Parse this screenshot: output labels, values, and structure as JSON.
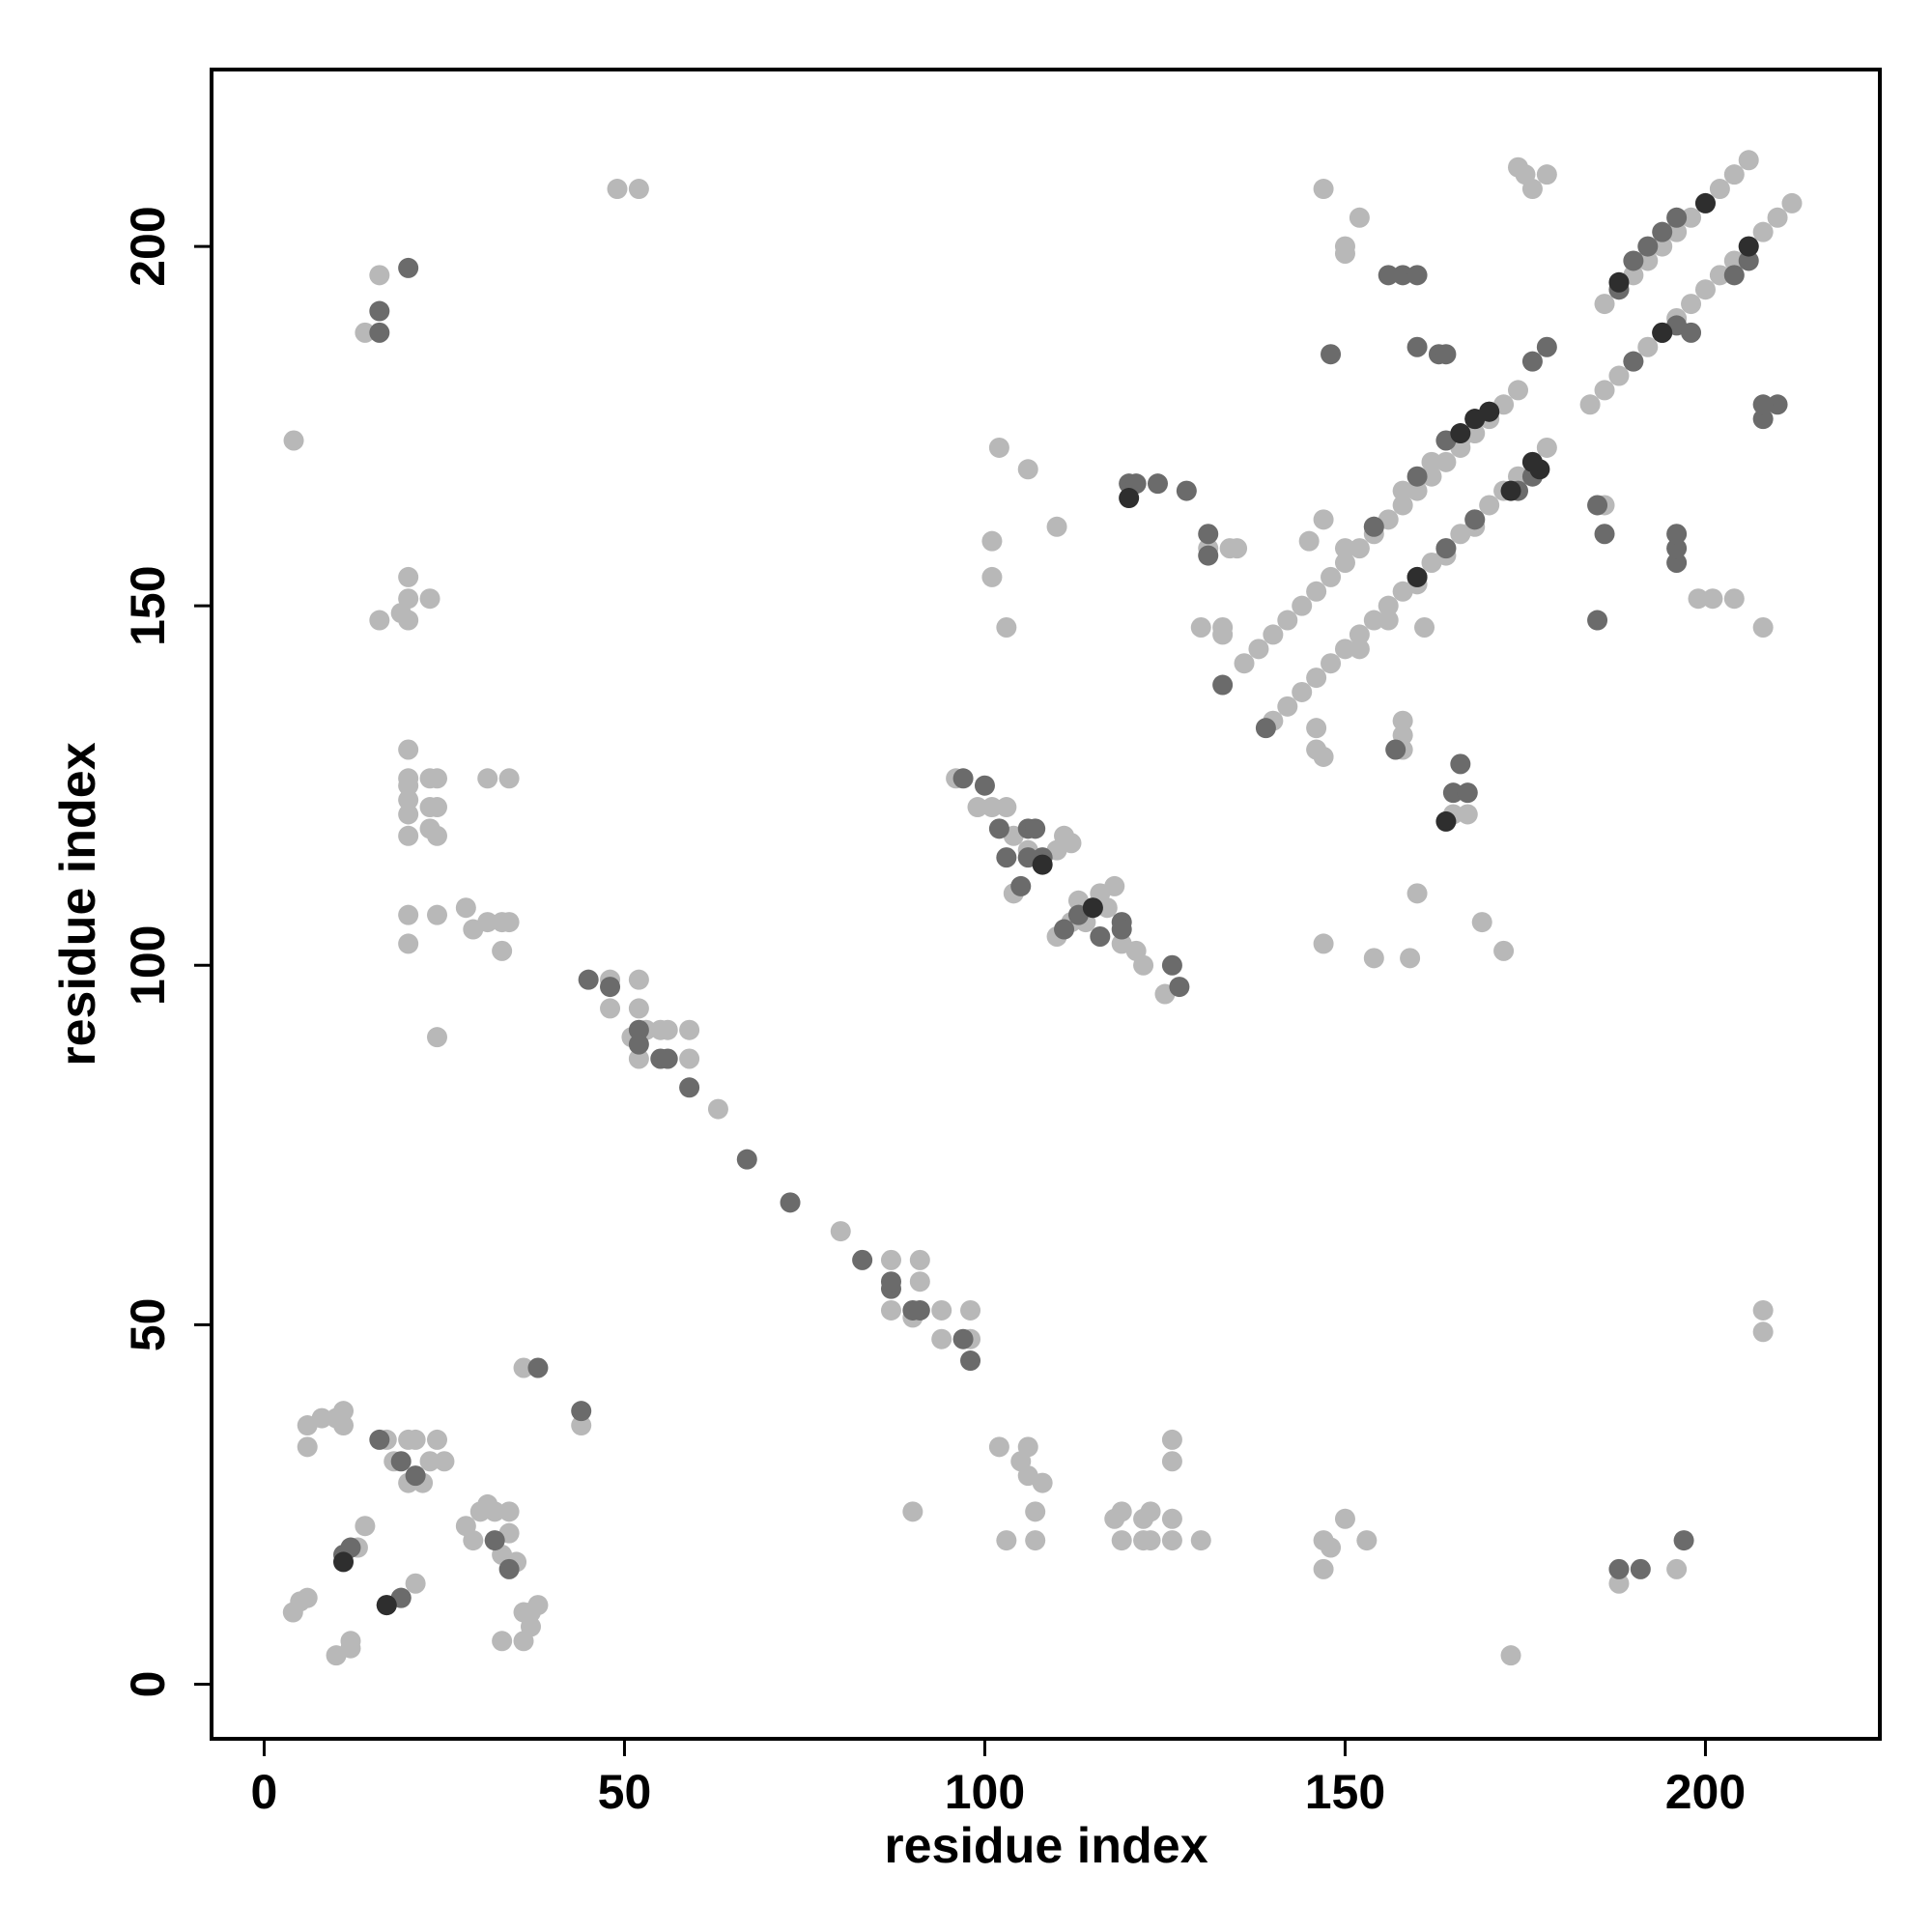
{
  "chart_data": {
    "type": "scatter",
    "xlabel": "residue index",
    "ylabel": "residue index",
    "xlim": [
      -7.3,
      224.2
    ],
    "ylim": [
      -7.6,
      224.6
    ],
    "xticks": [
      0,
      50,
      100,
      150,
      200
    ],
    "yticks": [
      0,
      50,
      100,
      150,
      200
    ],
    "series": [
      {
        "color": "#b8b8b8",
        "x": [
          4.1,
          49,
          52,
          16,
          14,
          16,
          20,
          20,
          23,
          19,
          20,
          20,
          20,
          20,
          20,
          20,
          20,
          23,
          24,
          23,
          24,
          23,
          24,
          31,
          34,
          20,
          20,
          24,
          28,
          29,
          31,
          33,
          34,
          33,
          24,
          48,
          52,
          48,
          52,
          51,
          53,
          55,
          56,
          59,
          52,
          59,
          63,
          80,
          87,
          91,
          87,
          91,
          90,
          94,
          98,
          94,
          98,
          6,
          6,
          8,
          10,
          11,
          11,
          4,
          5,
          6,
          10,
          12,
          12,
          13,
          14,
          17,
          18,
          20,
          21,
          20,
          22,
          23,
          24,
          25,
          19,
          21,
          28,
          29,
          30,
          31,
          32,
          34,
          34,
          33,
          35,
          33,
          36,
          36,
          37,
          38,
          37,
          36,
          44,
          102,
          106,
          106,
          105,
          108,
          107,
          103,
          107,
          90,
          118,
          119,
          122,
          123,
          126,
          126,
          126,
          119,
          122,
          123,
          126,
          130,
          147,
          148,
          150,
          153,
          147,
          188,
          196,
          173,
          208,
          208,
          147,
          150,
          150,
          152,
          102,
          106,
          101,
          101,
          103,
          110,
          130,
          133,
          133,
          131,
          134,
          135,
          147,
          154,
          159,
          160,
          169,
          172,
          146,
          146,
          147,
          158,
          158,
          158,
          165,
          167,
          161,
          204,
          201,
          199,
          208,
          186,
          145,
          147,
          96,
          99,
          101,
          103,
          104,
          106,
          108,
          110,
          111,
          112,
          104,
          110,
          112,
          114,
          116,
          118,
          119,
          121,
          122,
          125,
          117,
          113,
          136,
          138,
          140,
          142,
          144,
          146,
          148,
          150,
          152,
          154,
          156,
          158,
          160,
          162,
          164,
          166,
          168,
          170,
          172,
          174,
          186,
          188,
          190,
          192,
          194,
          196,
          198,
          200,
          202,
          204,
          206,
          140,
          142,
          144,
          146,
          148,
          150,
          152,
          154,
          156,
          158,
          160,
          162,
          164,
          166,
          168,
          170,
          172,
          174,
          176,
          178,
          184,
          186,
          188,
          190,
          192,
          194,
          196,
          198,
          200,
          202,
          204,
          206,
          208,
          210,
          212,
          150,
          154,
          158,
          162,
          166,
          152,
          156,
          160,
          164,
          168,
          174,
          175,
          178,
          176
        ],
        "y": [
          173,
          208,
          208,
          196,
          188,
          148,
          154,
          151,
          151,
          149,
          148,
          130,
          126,
          125,
          123,
          121,
          118,
          126,
          126,
          122,
          122,
          119,
          118,
          126,
          126,
          107,
          103,
          107,
          108,
          105,
          106,
          106,
          106,
          102,
          90,
          98,
          98,
          94,
          94,
          90,
          91,
          91,
          91,
          91,
          87,
          87,
          80,
          63,
          59,
          59,
          52,
          56,
          51,
          52,
          52,
          48,
          48,
          36,
          33,
          37,
          37,
          38,
          36,
          10,
          11.5,
          12,
          4,
          5,
          6,
          19,
          22,
          34,
          31,
          34,
          34,
          28,
          28,
          31,
          34,
          31,
          12,
          14,
          22,
          20,
          24,
          25,
          24,
          24,
          21,
          18,
          17,
          6,
          6,
          10,
          10,
          11,
          8,
          44,
          36,
          33,
          33,
          29,
          31,
          28,
          24,
          20,
          20,
          24,
          23,
          24,
          23,
          24,
          23,
          34,
          31,
          20,
          20,
          20,
          20,
          20,
          20,
          19,
          23,
          20,
          16,
          14,
          16,
          4,
          52,
          49,
          208,
          200,
          199,
          204,
          172,
          169,
          159,
          154,
          147,
          161,
          147,
          147,
          146,
          158,
          158,
          158,
          103,
          101,
          101,
          110,
          106,
          102,
          130,
          133,
          129,
          134,
          132,
          130,
          121,
          121,
          147,
          151,
          151,
          151,
          147,
          164,
          159,
          162,
          126,
          122,
          122,
          122,
          118,
          116,
          114,
          116,
          118,
          117,
          110,
          104,
          106,
          106,
          110,
          111,
          103,
          102,
          100,
          96,
          108,
          109,
          142,
          144,
          146,
          148,
          150,
          152,
          154,
          156,
          158,
          160,
          162,
          164,
          166,
          168,
          170,
          172,
          174,
          176,
          178,
          180,
          192,
          194,
          196,
          198,
          200,
          202,
          204,
          206,
          208,
          210,
          212,
          134,
          136,
          138,
          140,
          142,
          144,
          146,
          148,
          150,
          152,
          154,
          156,
          158,
          160,
          162,
          164,
          166,
          168,
          170,
          172,
          178,
          180,
          182,
          184,
          186,
          188,
          190,
          192,
          194,
          196,
          198,
          200,
          202,
          204,
          206,
          158,
          161,
          166,
          170,
          173,
          144,
          148,
          153,
          157,
          161,
          211,
          210,
          210,
          208
        ]
      },
      {
        "color": "#6b6b6b",
        "x": [
          20,
          16,
          16,
          45,
          48,
          52,
          52,
          55,
          56,
          59,
          67,
          73,
          83,
          87,
          87,
          90,
          91,
          97,
          98,
          38,
          44,
          16,
          19,
          21,
          11,
          12,
          17,
          19,
          34,
          32,
          188,
          191,
          197,
          148,
          156,
          158,
          160,
          160,
          163,
          164,
          120,
          121,
          124,
          128,
          131,
          131,
          133,
          139,
          157,
          166,
          165,
          167,
          185,
          186,
          185,
          196,
          196,
          196,
          208,
          210,
          208,
          97,
          100,
          102,
          106,
          107,
          103,
          106,
          108,
          105,
          111,
          113,
          115,
          116,
          119,
          119,
          126,
          127,
          154,
          160,
          164,
          168,
          170,
          176,
          178,
          188,
          190,
          192,
          194,
          196,
          160,
          164,
          168,
          174,
          176,
          190,
          194,
          196,
          198,
          204,
          206
        ],
        "y": [
          197,
          191,
          188,
          98,
          97,
          91,
          89,
          87,
          87,
          83,
          73,
          67,
          59,
          55,
          56,
          52,
          52,
          48,
          45,
          44,
          38,
          34,
          31,
          29,
          18,
          19,
          11,
          12,
          16,
          20,
          16,
          16,
          20,
          185,
          196,
          196,
          196,
          186,
          185,
          185,
          167,
          167,
          167,
          166,
          157,
          160,
          139,
          133,
          130,
          128,
          124,
          124,
          148,
          160,
          164,
          156,
          158,
          160,
          176,
          178,
          178,
          126,
          125,
          119,
          119,
          119,
          115,
          115,
          115,
          111,
          105,
          107,
          108,
          104,
          106,
          105,
          100,
          97,
          161,
          168,
          173,
          176,
          177,
          184,
          186,
          194,
          198,
          200,
          202,
          204,
          154,
          158,
          162,
          166,
          168,
          184,
          188,
          189,
          188,
          196,
          198
        ]
      },
      {
        "color": "#2e2e2e",
        "x": [
          108,
          115,
          120,
          164,
          11,
          17,
          160,
          168,
          177,
          200,
          206,
          194,
          188,
          166,
          173,
          170,
          176
        ],
        "y": [
          114,
          108,
          165,
          120,
          17,
          11,
          154,
          176,
          169,
          206,
          200,
          188,
          195,
          174,
          166,
          177,
          170
        ]
      }
    ]
  }
}
